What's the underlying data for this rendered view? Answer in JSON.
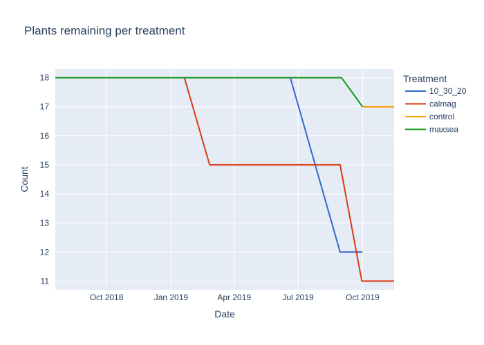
{
  "chart_data": {
    "type": "line",
    "title": "Plants remaining per treatment",
    "xlabel": "Date",
    "ylabel": "Count",
    "x_axis_type": "date",
    "xlim": [
      "2018-07-20",
      "2019-11-15"
    ],
    "ylim": [
      10.7,
      18.3
    ],
    "x_ticks": [
      {
        "date": "2018-10-01",
        "label": "Oct 2018"
      },
      {
        "date": "2019-01-01",
        "label": "Jan 2019"
      },
      {
        "date": "2019-04-01",
        "label": "Apr 2019"
      },
      {
        "date": "2019-07-01",
        "label": "Jul 2019"
      },
      {
        "date": "2019-10-01",
        "label": "Oct 2019"
      }
    ],
    "y_ticks": [
      11,
      12,
      13,
      14,
      15,
      16,
      17,
      18
    ],
    "grid": true,
    "legend": {
      "title": "Treatment",
      "placement": "right"
    },
    "series": [
      {
        "name": "10_30_20",
        "color": "#3366cc",
        "points": [
          {
            "x": "2019-06-20",
            "y": 18
          },
          {
            "x": "2019-08-30",
            "y": 12
          },
          {
            "x": "2019-10-01",
            "y": 12
          }
        ]
      },
      {
        "name": "calmag",
        "color": "#dc3912",
        "points": [
          {
            "x": "2019-01-20",
            "y": 18
          },
          {
            "x": "2019-02-25",
            "y": 15
          },
          {
            "x": "2019-08-30",
            "y": 15
          },
          {
            "x": "2019-09-30",
            "y": 11
          },
          {
            "x": "2019-11-15",
            "y": 11
          }
        ]
      },
      {
        "name": "control",
        "color": "#ff9900",
        "points": [
          {
            "x": "2019-10-01",
            "y": 17
          },
          {
            "x": "2019-11-15",
            "y": 17
          }
        ]
      },
      {
        "name": "maxsea",
        "color": "#109618",
        "points": [
          {
            "x": "2018-07-20",
            "y": 18
          },
          {
            "x": "2019-09-01",
            "y": 18
          },
          {
            "x": "2019-10-01",
            "y": 17
          }
        ]
      }
    ]
  }
}
